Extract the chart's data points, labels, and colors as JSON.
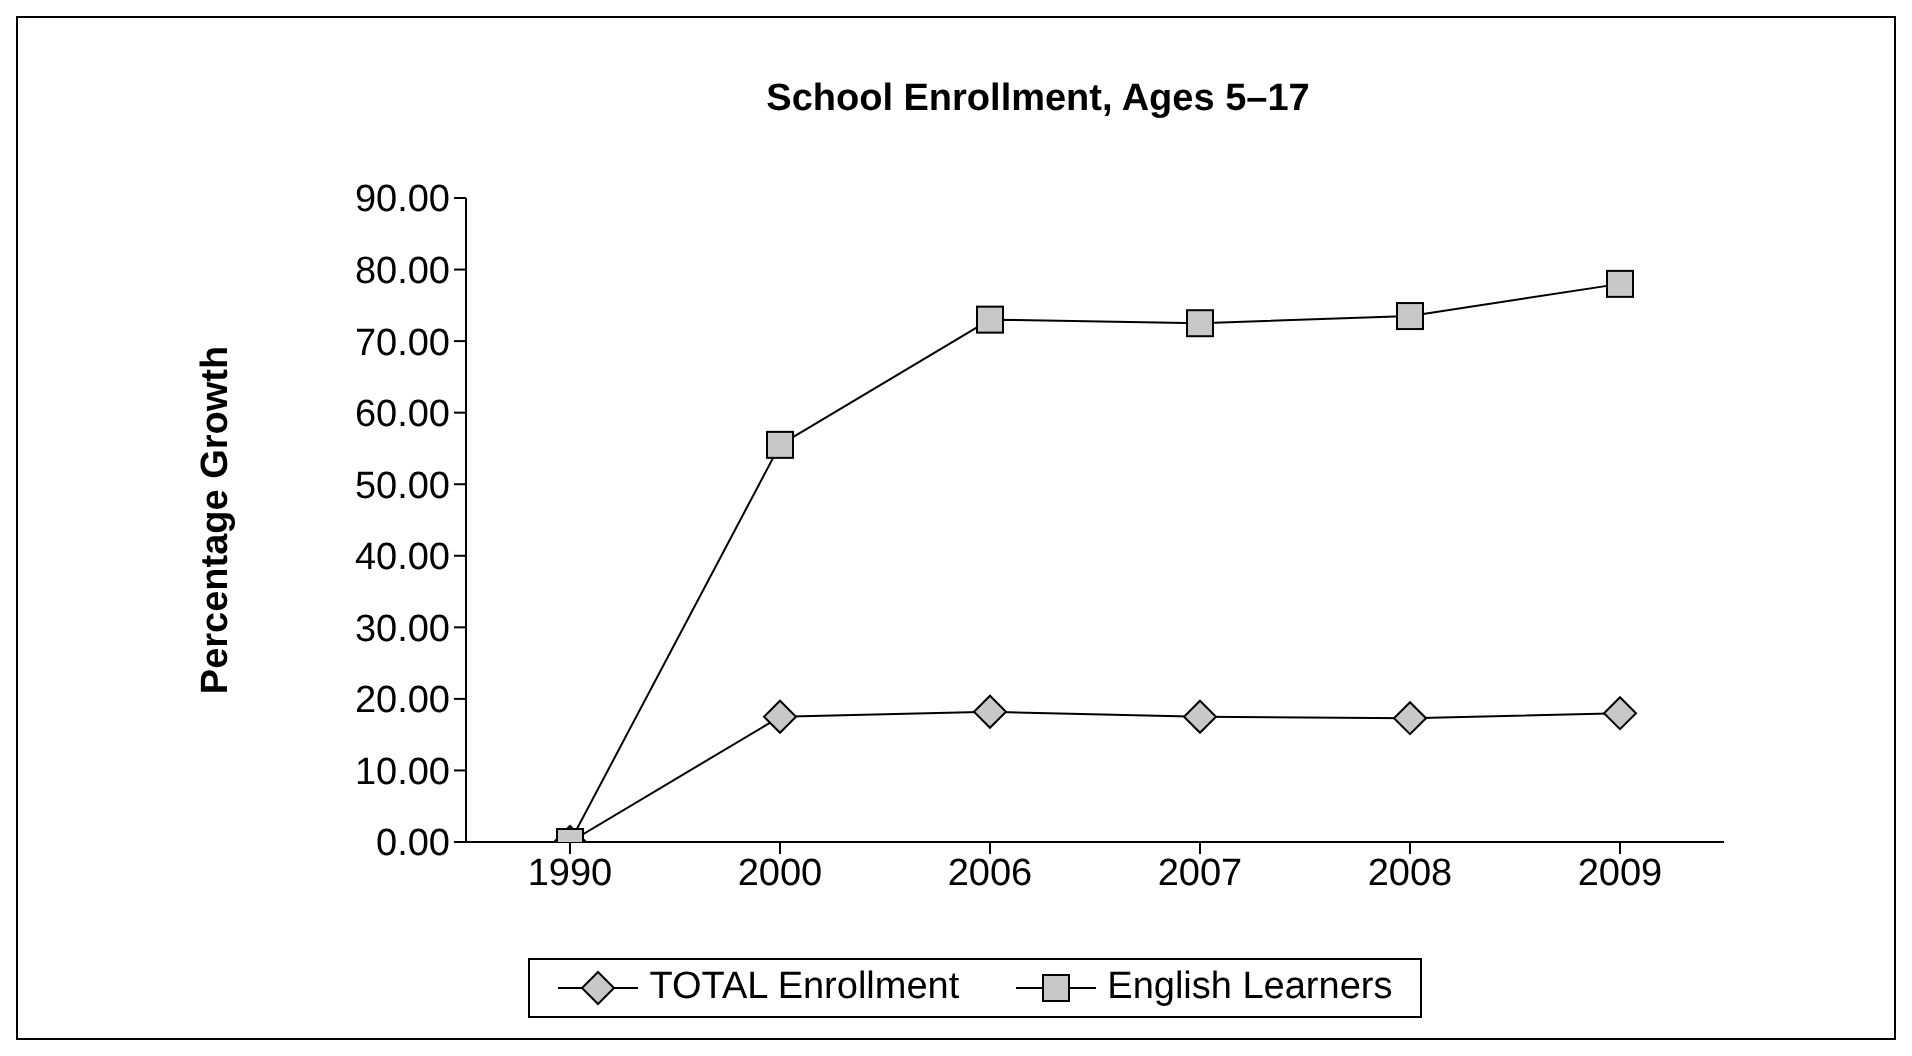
{
  "chart_data": {
    "type": "line",
    "title": "School Enrollment, Ages 5–17",
    "ylabel": "Percentage Growth",
    "categories": [
      "1990",
      "2000",
      "2006",
      "2007",
      "2008",
      "2009"
    ],
    "series": [
      {
        "name": "TOTAL Enrollment",
        "color": "#000000",
        "marker": "diamond",
        "values": [
          0,
          17.5,
          18.2,
          17.5,
          17.3,
          18
        ]
      },
      {
        "name": "English Learners",
        "color": "#000000",
        "marker": "square",
        "values": [
          0,
          55.5,
          73,
          72.5,
          73.5,
          78
        ]
      }
    ],
    "ylim": [
      0,
      90
    ],
    "yticks": [
      {
        "value": 0,
        "label": "0.00"
      },
      {
        "value": 10,
        "label": "10.00"
      },
      {
        "value": 20,
        "label": "20.00"
      },
      {
        "value": 30,
        "label": "30.00"
      },
      {
        "value": 40,
        "label": "40.00"
      },
      {
        "value": 50,
        "label": "50.00"
      },
      {
        "value": 60,
        "label": "60.00"
      },
      {
        "value": 70,
        "label": "70.00"
      },
      {
        "value": 80,
        "label": "80.00"
      },
      {
        "value": 90,
        "label": "90.00"
      }
    ],
    "grid": false,
    "legend": "bottom",
    "line_style": "solid"
  }
}
